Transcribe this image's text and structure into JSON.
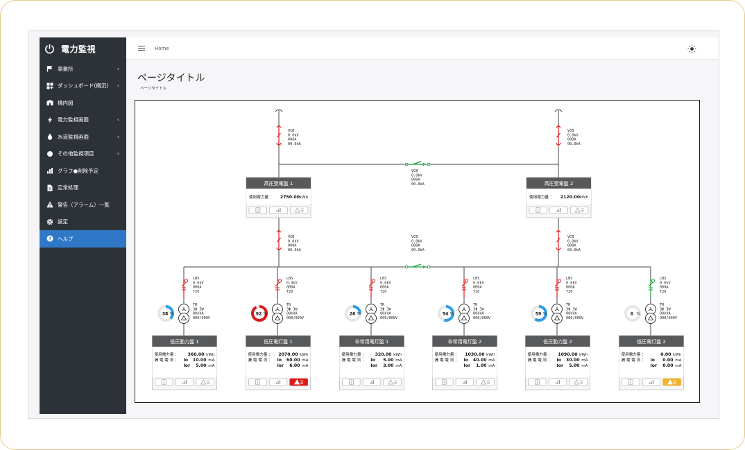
{
  "app": {
    "title": "電力監視"
  },
  "sidebar": {
    "items": [
      {
        "label": "事業所",
        "icon": "flag-icon",
        "chevron": true
      },
      {
        "label": "ダッシュボード(概況)",
        "icon": "dashboard-icon",
        "chevron": true
      },
      {
        "label": "構内図",
        "icon": "map-icon",
        "chevron": false
      },
      {
        "label": "電力監視画面",
        "icon": "bolt-icon",
        "chevron": true
      },
      {
        "label": "水道監視画面",
        "icon": "water-drop-icon",
        "chevron": true
      },
      {
        "label": "その他監視項目",
        "icon": "circle-icon",
        "chevron": true
      },
      {
        "label": "グラフ●削除予定",
        "icon": "bar-chart-icon",
        "chevron": false
      },
      {
        "label": "定常処理",
        "icon": "document-icon",
        "chevron": false
      },
      {
        "label": "警告（アラーム）一覧",
        "icon": "warning-icon",
        "chevron": false
      },
      {
        "label": "設定",
        "icon": "gear-icon",
        "chevron": false
      },
      {
        "label": "ヘルプ",
        "icon": "help-icon",
        "chevron": false,
        "active": true
      }
    ]
  },
  "topbar": {
    "breadcrumb": "Home"
  },
  "page": {
    "title": "ページタイトル",
    "subtitle": "ページタイトル"
  },
  "colors": {
    "sidebar": "#2d3238",
    "active": "#2f78c8",
    "panelHeader": "#58595b",
    "breaker": "#d81c1c",
    "breakerGreen": "#1a9a3c",
    "gauge": "#2e9ee3",
    "alarm": "#d81c1c",
    "warn": "#f0b12b"
  },
  "high_voltage": {
    "vcb_top": [
      "VCB",
      "0.0kV",
      "000A",
      "00.0kA"
    ],
    "tie_top": [
      "VCB",
      "0.0kV",
      "000A",
      "00.0kA"
    ],
    "vcb_mid": [
      "VCB",
      "0.0kV",
      "000A",
      "00.0kA"
    ],
    "tie_mid": [
      "VCB",
      "0.0kV",
      "000A",
      "00.0kA"
    ],
    "panels": [
      {
        "title": "高圧受電盤 1",
        "label": "使用電力量 ：",
        "value": "2750.00",
        "unit": "kWh"
      },
      {
        "title": "高圧受電盤 2",
        "label": "使用電力量 ：",
        "value": "2120.00",
        "unit": "kWh"
      }
    ]
  },
  "feeders": [
    {
      "title": "低圧動力盤 1",
      "lbs": [
        "LBS",
        "0.0kV",
        "000A",
        "T20"
      ],
      "tr": [
        "TR",
        "3Φ 3W",
        "00kVA",
        "000/000V"
      ],
      "load": 38,
      "loadText": "38",
      "energy": "360.00",
      "io": "10.00",
      "ior": "5.00",
      "alarm": "none",
      "lbsColor": "red"
    },
    {
      "title": "低圧電灯盤 1",
      "lbs": [
        "LBS",
        "0.0kV",
        "000A",
        "T20"
      ],
      "tr": [
        "TR",
        "3Φ 3W",
        "00kVA",
        "000/000V"
      ],
      "load": 92,
      "loadText": "92",
      "energy": "2070.00",
      "io": "60.00",
      "ior": "6.00",
      "alarm": "red",
      "lbsColor": "red"
    },
    {
      "title": "非常用電灯盤 1",
      "lbs": [
        "LBS",
        "0.0kV",
        "000A",
        "T20"
      ],
      "tr": [
        "TR",
        "3Φ 3W",
        "00kVA",
        "000/000V"
      ],
      "load": 26,
      "loadText": "26",
      "energy": "320.00",
      "io": "5.00",
      "ior": "3.00",
      "alarm": "none",
      "lbsColor": "red"
    },
    {
      "title": "非常用電灯盤 2",
      "lbs": [
        "LBS",
        "0.0kV",
        "000A",
        "T20"
      ],
      "tr": [
        "TR",
        "3Φ 3W",
        "00kVA",
        "000/000V"
      ],
      "load": 54,
      "loadText": "54",
      "energy": "1030.00",
      "io": "40.00",
      "ior": "1.00",
      "alarm": "none",
      "lbsColor": "red"
    },
    {
      "title": "低圧動力盤 2",
      "lbs": [
        "LBS",
        "0.0kV",
        "000A",
        "T20"
      ],
      "tr": [
        "TR",
        "3Φ 3W",
        "00kVA",
        "000/000V"
      ],
      "load": 59,
      "loadText": "59",
      "energy": "1090.00",
      "io": "30.00",
      "ior": "5.00",
      "alarm": "none",
      "lbsColor": "red"
    },
    {
      "title": "低圧電灯盤 2",
      "lbs": [
        "LBS",
        "0.0kV",
        "000A",
        "T20"
      ],
      "tr": [
        "TR",
        "3Φ 3W",
        "00kVA",
        "000/000V"
      ],
      "load": 0,
      "loadText": "0",
      "energy": "0.00",
      "io": "0.00",
      "ior": "0.00",
      "alarm": "warn",
      "lbsColor": "green"
    }
  ],
  "labels": {
    "energy": "使用電力量 ：",
    "leak": "漏 電 電 流 ：",
    "io": "Io",
    "ior": "Ior",
    "kwh": "kWh",
    "ma": "mA",
    "pct": "%"
  }
}
